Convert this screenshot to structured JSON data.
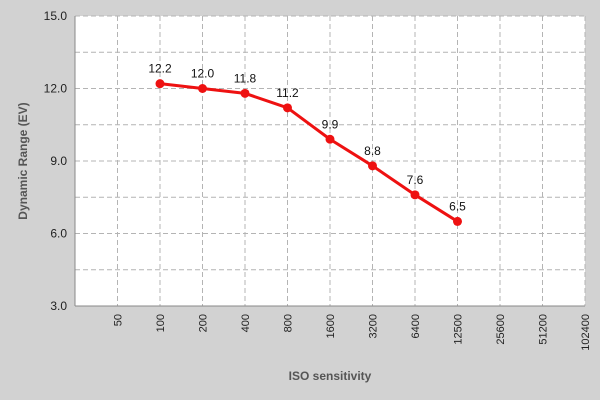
{
  "chart_data": {
    "type": "line",
    "title": "",
    "xlabel": "ISO sensitivity",
    "ylabel": "Dynamic Range (EV)",
    "x_categories": [
      "50",
      "100",
      "200",
      "400",
      "800",
      "1600",
      "3200",
      "6400",
      "12500",
      "25600",
      "51200",
      "102400"
    ],
    "y_ticks": [
      "3.0",
      "6.0",
      "9.0",
      "12.0",
      "15.0"
    ],
    "ylim": [
      3,
      15
    ],
    "grid": true,
    "series": [
      {
        "name": "",
        "x": [
          "100",
          "200",
          "400",
          "800",
          "1600",
          "3200",
          "6400",
          "12500"
        ],
        "values": [
          12.2,
          12.0,
          11.8,
          11.2,
          9.9,
          8.8,
          7.6,
          6.5
        ],
        "labels": [
          "12.2",
          "12.0",
          "11.8",
          "11.2",
          "9.9",
          "8.8",
          "7.6",
          "6.5"
        ],
        "color": "#ee1111"
      }
    ],
    "colors": {
      "background": "#d2d2d2",
      "plot_area": "#ffffff",
      "grid": "#b4b4b4",
      "axis_title": "#555555"
    }
  }
}
